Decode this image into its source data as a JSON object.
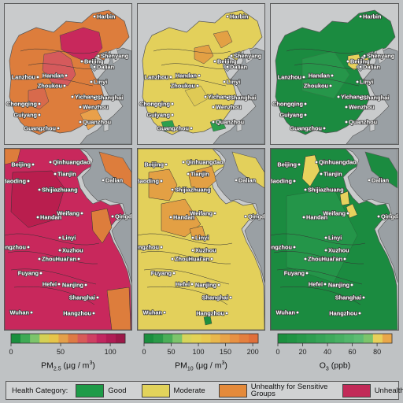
{
  "panels_top": [
    {
      "id": "pm25",
      "theme": "pm25"
    },
    {
      "id": "pm10",
      "theme": "pm10"
    },
    {
      "id": "o3",
      "theme": "o3"
    }
  ],
  "cities_top": [
    {
      "name": "Harbin"
    },
    {
      "name": "Shenyang"
    },
    {
      "name": "Beijing"
    },
    {
      "name": "Dalian"
    },
    {
      "name": "Lanzhou"
    },
    {
      "name": "Handan"
    },
    {
      "name": "Linyi"
    },
    {
      "name": "Zhoukou"
    },
    {
      "name": "Yichang"
    },
    {
      "name": "Shanghai"
    },
    {
      "name": "Chongqing"
    },
    {
      "name": "Wenzhou"
    },
    {
      "name": "Guiyang"
    },
    {
      "name": "Quanzhou"
    },
    {
      "name": "Guangzhou"
    }
  ],
  "cities_bottom": [
    {
      "name": "Beijing"
    },
    {
      "name": "Qinhuangdao"
    },
    {
      "name": "Tianjin"
    },
    {
      "name": "Baoding"
    },
    {
      "name": "Dalian"
    },
    {
      "name": "Shijiazhuang"
    },
    {
      "name": "Handan"
    },
    {
      "name": "Weifang"
    },
    {
      "name": "Qingdao"
    },
    {
      "name": "Linyi"
    },
    {
      "name": "Zhengzhou"
    },
    {
      "name": "Xuzhou"
    },
    {
      "name": "Zhoukou"
    },
    {
      "name": "Huai'an"
    },
    {
      "name": "Fuyang"
    },
    {
      "name": "Hefei"
    },
    {
      "name": "Nanjing"
    },
    {
      "name": "Shanghai"
    },
    {
      "name": "Wuhan"
    },
    {
      "name": "Hangzhou"
    }
  ],
  "colorbars": [
    {
      "id": "pm25",
      "ticks": [
        "0",
        "50",
        "100"
      ],
      "tick_values": [
        0,
        50,
        100
      ],
      "vmax": 115,
      "colors": [
        "#1a8f3e",
        "#3eaa55",
        "#7cc46b",
        "#d4d055",
        "#e6c54a",
        "#e4a04a",
        "#de7a45",
        "#d85a58",
        "#cf3f62",
        "#c2265f",
        "#b01c54",
        "#9c1848"
      ],
      "title_main": "PM",
      "title_sub": "2.5",
      "title_unit": " (μg / m",
      "title_unit_sup": "3",
      "title_end": ")"
    },
    {
      "id": "pm10",
      "ticks": [
        "0",
        "50",
        "100",
        "150",
        "200"
      ],
      "tick_values": [
        0,
        50,
        100,
        150,
        200
      ],
      "vmax": 210,
      "colors": [
        "#1a8f3e",
        "#2a9a48",
        "#4aae58",
        "#7cc46b",
        "#d6d45b",
        "#e2d256",
        "#e8c84f",
        "#e8b74c",
        "#e9a448",
        "#e89143",
        "#e47f3e",
        "#e06f3a"
      ],
      "title_main": "PM",
      "title_sub": "10",
      "title_unit": " (μg / m",
      "title_unit_sup": "3",
      "title_end": ")"
    },
    {
      "id": "o3",
      "ticks": [
        "0",
        "20",
        "40",
        "60",
        "80"
      ],
      "tick_values": [
        0,
        20,
        40,
        60,
        80
      ],
      "vmax": 92,
      "colors": [
        "#1a8f3e",
        "#1f9443",
        "#27994a",
        "#2e9e50",
        "#36a457",
        "#3eaa5c",
        "#47b063",
        "#51b66b",
        "#5dbc73",
        "#7cc46b",
        "#e8d05a",
        "#e9a74a"
      ],
      "title_main": "O",
      "title_sub": "3",
      "title_unit": " (ppb)",
      "title_unit_sup": "",
      "title_end": ""
    }
  ],
  "legend": {
    "title": "Health Category:",
    "items": [
      {
        "label": "Good",
        "color": "#1e9b48"
      },
      {
        "label": "Moderate",
        "color": "#e2d35b"
      },
      {
        "label": "Unhealthy for Sensitive Groups",
        "color": "#e48a3a"
      },
      {
        "label": "Unhealthy",
        "color": "#c22a58"
      }
    ]
  },
  "colors": {
    "land_gray": "#c9cbcc",
    "sea": "#9aa0a4",
    "pm25_base": "#dd7d3c",
    "pm25_high": "#c8285c",
    "pm10_base": "#e3d05b",
    "pm10_high": "#e3a044",
    "o3_base": "#1b8b40",
    "o3_mod": "#e7d25d"
  }
}
